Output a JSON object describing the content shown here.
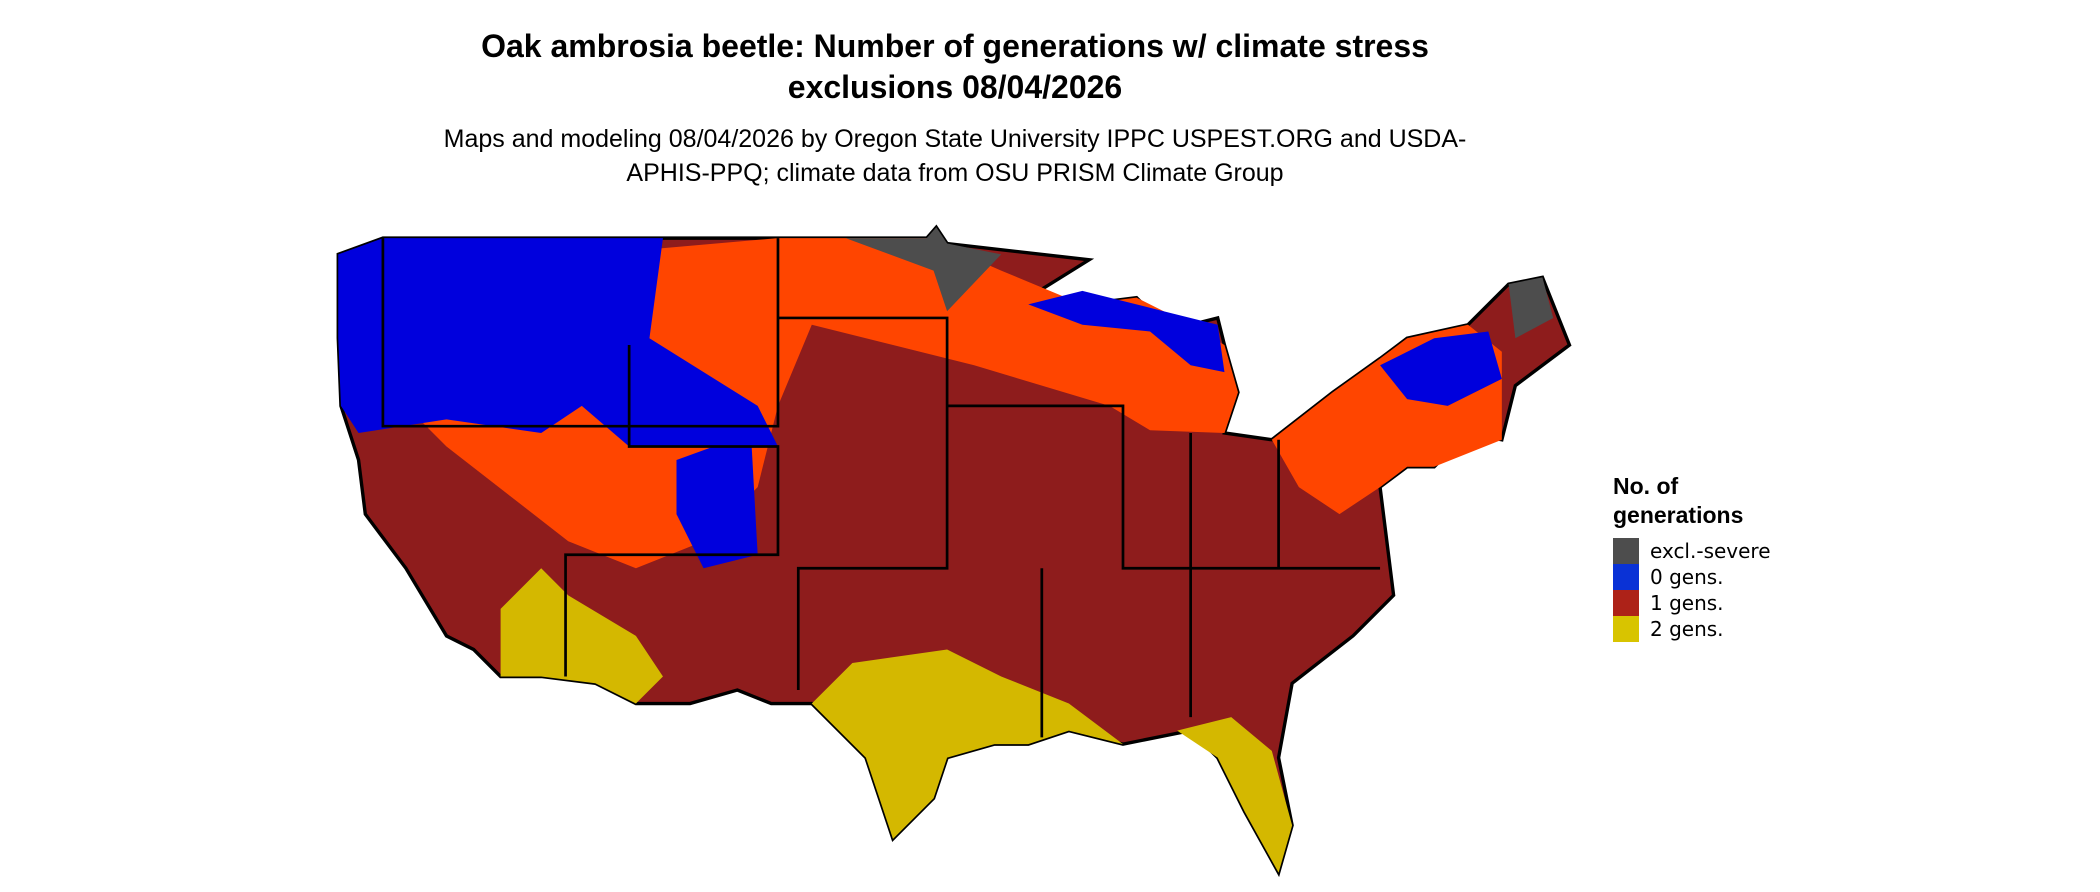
{
  "title": "Oak ambrosia beetle: Number of generations w/ climate stress exclusions 08/04/2026",
  "subtitle": "Maps and modeling 08/04/2026 by Oregon State University IPPC USPEST.ORG and USDA-APHIS-PPQ; climate data from OSU PRISM Climate Group",
  "legend": {
    "title": "No. of generations",
    "items": [
      {
        "label": "excl.-severe",
        "color": "#4d4d4d"
      },
      {
        "label": "0 gens.",
        "color": "#0a32d6"
      },
      {
        "label": "1 gens.",
        "color": "#ad2218"
      },
      {
        "label": "2 gens.",
        "color": "#d8c400"
      }
    ]
  }
}
